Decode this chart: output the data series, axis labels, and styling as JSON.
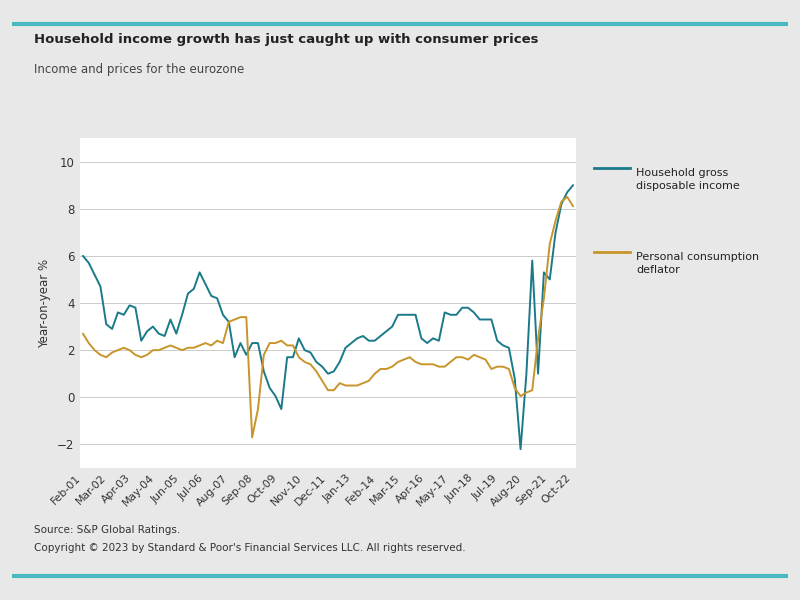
{
  "title": "Household income growth has just caught up with consumer prices",
  "subtitle": "Income and prices for the eurozone",
  "ylabel": "Year-on-year %",
  "source_line1": "Source: S&P Global Ratings.",
  "source_line2": "Copyright © 2023 by Standard & Poor's Financial Services LLC. All rights reserved.",
  "legend_label1": "Household gross\ndisposable income",
  "legend_label2": "Personal consumption\ndeflator",
  "color1": "#1a7a8a",
  "color2": "#c8952b",
  "border_color": "#4ab8c1",
  "ylim": [
    -3,
    11
  ],
  "yticks": [
    -2,
    0,
    2,
    4,
    6,
    8,
    10
  ],
  "xtick_labels": [
    "Feb-01",
    "Mar-02",
    "Apr-03",
    "May-04",
    "Jun-05",
    "Jul-06",
    "Aug-07",
    "Sep-08",
    "Oct-09",
    "Nov-10",
    "Dec-11",
    "Jan-13",
    "Feb-14",
    "Mar-15",
    "Apr-16",
    "May-17",
    "Jun-18",
    "Jul-19",
    "Aug-20",
    "Sep-21",
    "Oct-22"
  ],
  "hgdi": [
    6.0,
    5.7,
    5.2,
    4.7,
    3.1,
    2.9,
    3.6,
    3.5,
    3.9,
    3.8,
    2.4,
    2.8,
    3.0,
    2.7,
    2.6,
    3.3,
    2.7,
    3.5,
    4.4,
    4.6,
    5.3,
    4.8,
    4.3,
    4.2,
    3.5,
    3.2,
    1.7,
    2.3,
    1.8,
    2.3,
    2.3,
    1.1,
    0.4,
    0.05,
    -0.5,
    1.7,
    1.7,
    2.5,
    2.0,
    1.9,
    1.5,
    1.3,
    1.0,
    1.1,
    1.5,
    2.1,
    2.3,
    2.5,
    2.6,
    2.4,
    2.4,
    2.6,
    2.8,
    3.0,
    3.5,
    3.5,
    3.5,
    3.5,
    2.5,
    2.3,
    2.5,
    2.4,
    3.6,
    3.5,
    3.5,
    3.8,
    3.8,
    3.6,
    3.3,
    3.3,
    3.3,
    2.4,
    2.2,
    2.1,
    0.8,
    -2.2,
    1.0,
    5.8,
    1.0,
    5.3,
    5.0,
    7.0,
    8.2,
    8.7,
    9.0
  ],
  "pcd": [
    2.7,
    2.3,
    2.0,
    1.8,
    1.7,
    1.9,
    2.0,
    2.1,
    2.0,
    1.8,
    1.7,
    1.8,
    2.0,
    2.0,
    2.1,
    2.2,
    2.1,
    2.0,
    2.1,
    2.1,
    2.2,
    2.3,
    2.2,
    2.4,
    2.3,
    3.2,
    3.3,
    3.4,
    3.4,
    -1.7,
    -0.5,
    1.8,
    2.3,
    2.3,
    2.4,
    2.2,
    2.2,
    1.7,
    1.5,
    1.4,
    1.1,
    0.7,
    0.3,
    0.3,
    0.6,
    0.5,
    0.5,
    0.5,
    0.6,
    0.7,
    1.0,
    1.2,
    1.2,
    1.3,
    1.5,
    1.6,
    1.7,
    1.5,
    1.4,
    1.4,
    1.4,
    1.3,
    1.3,
    1.5,
    1.7,
    1.7,
    1.6,
    1.8,
    1.7,
    1.6,
    1.2,
    1.3,
    1.3,
    1.2,
    0.4,
    0.05,
    0.2,
    0.3,
    2.5,
    4.2,
    6.5,
    7.5,
    8.3,
    8.5,
    8.1
  ]
}
